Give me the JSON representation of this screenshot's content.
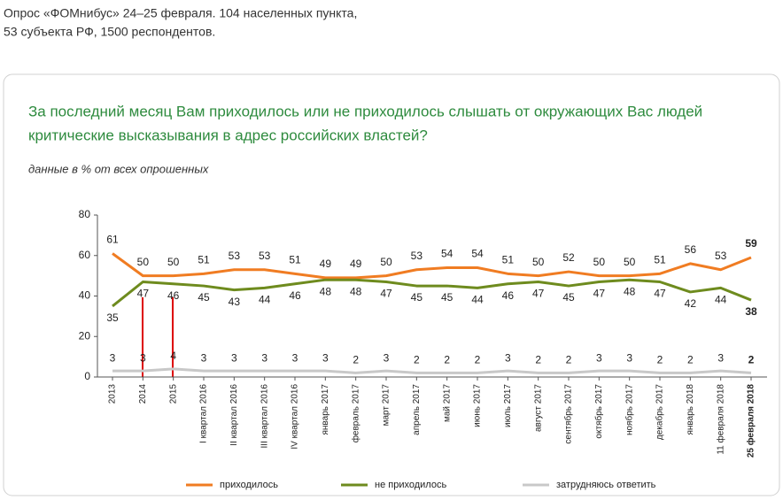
{
  "header": [
    "Опрос «ФОМнибус» 24–25 февраля. 104 населенных пункта,",
    "53 субъекта РФ, 1500 респондентов."
  ],
  "chart_data": {
    "type": "line",
    "title": [
      "За последний месяц Вам приходилось или не приходилось слышать от окружающих Вас людей",
      "критические высказывания в адрес российских властей?"
    ],
    "subtitle": "данные в % от всех опрошенных",
    "categories": [
      "2013",
      "2014",
      "2015",
      "I квартал 2016",
      "II квартал 2016",
      "III квартал 2016",
      "IV квартал 2016",
      "январь 2017",
      "февраль 2017",
      "март 2017",
      "апрель 2017",
      "май 2017",
      "июнь 2017",
      "июль 2017",
      "август 2017",
      "сентябрь 2017",
      "октябрь 2017",
      "ноябрь 2017",
      "декабрь 2017",
      "январь 2018",
      "11 февраля 2018",
      "25 февраля 2018"
    ],
    "series": [
      {
        "name": "приходилось",
        "color": "#f07c22",
        "values": [
          61,
          50,
          50,
          51,
          53,
          53,
          51,
          49,
          49,
          50,
          53,
          54,
          54,
          51,
          50,
          52,
          50,
          50,
          51,
          56,
          53,
          59
        ]
      },
      {
        "name": "не приходилось",
        "color": "#6e8b1e",
        "values": [
          35,
          47,
          46,
          45,
          43,
          44,
          46,
          48,
          48,
          47,
          45,
          45,
          44,
          46,
          47,
          45,
          47,
          48,
          47,
          42,
          44,
          38
        ]
      },
      {
        "name": "затрудняюсь ответить",
        "color": "#c8c8c8",
        "values": [
          3,
          3,
          4,
          3,
          3,
          3,
          3,
          3,
          2,
          3,
          2,
          2,
          2,
          3,
          2,
          2,
          3,
          3,
          2,
          2,
          3,
          2
        ]
      }
    ],
    "ylim": [
      0,
      80
    ],
    "yticks": [
      0,
      20,
      40,
      60,
      80
    ]
  }
}
